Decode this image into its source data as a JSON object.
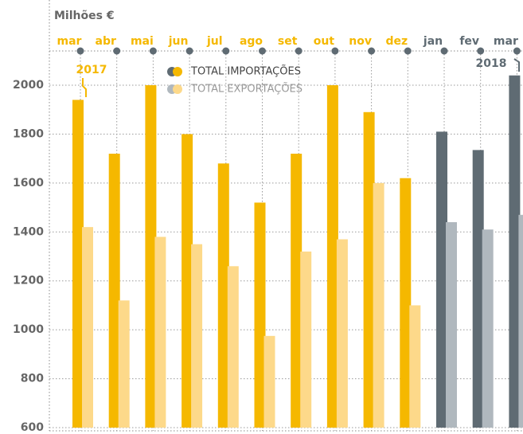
{
  "chart_data": {
    "type": "bar",
    "y_label": "Milhões €",
    "categories": [
      "mar",
      "abr",
      "mai",
      "jun",
      "jul",
      "ago",
      "set",
      "out",
      "nov",
      "dez",
      "jan",
      "fev",
      "mar"
    ],
    "series": [
      {
        "name": "TOTAL IMPORTAÇÕES",
        "color": "#f5b800",
        "colors": [
          "#f5b800",
          "#f5b800",
          "#f5b800",
          "#f5b800",
          "#f5b800",
          "#f5b800",
          "#f5b800",
          "#f5b800",
          "#f5b800",
          "#f5b800",
          "#5f6b73",
          "#5f6b73",
          "#5f6b73"
        ],
        "values": [
          1940,
          1720,
          2000,
          1800,
          1680,
          1520,
          1720,
          2000,
          1890,
          1620,
          1810,
          1735,
          2040
        ]
      },
      {
        "name": "TOTAL EXPORTAÇÕES",
        "color": "#fdd98a",
        "colors": [
          "#fdd98a",
          "#fdd98a",
          "#fdd98a",
          "#fdd98a",
          "#fdd98a",
          "#fdd98a",
          "#fdd98a",
          "#fdd98a",
          "#fdd98a",
          "#fdd98a",
          "#b0b8be",
          "#b0b8be",
          "#b0b8be"
        ],
        "values": [
          1420,
          1120,
          1380,
          1350,
          1260,
          975,
          1320,
          1370,
          1600,
          1100,
          1440,
          1410,
          1470
        ]
      }
    ],
    "annotations": [
      {
        "text": "2017",
        "color": "#f5b800"
      },
      {
        "text": "2018",
        "color": "#5f6b73"
      }
    ],
    "ylim": [
      600,
      2140
    ],
    "yticks": [
      600,
      800,
      1000,
      1200,
      1400,
      1600,
      1800,
      2000
    ],
    "grid": true
  }
}
